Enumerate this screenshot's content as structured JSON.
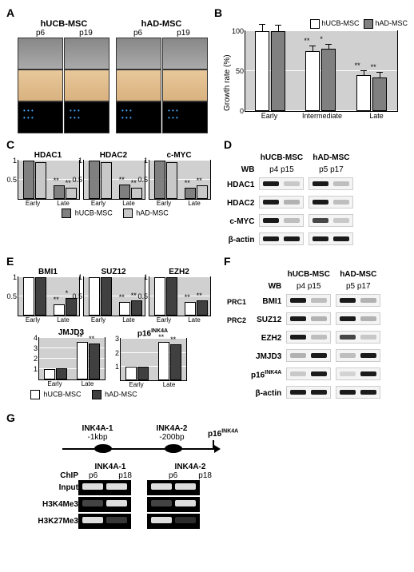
{
  "panelA": {
    "label": "A",
    "columns": [
      "hUCB-MSC",
      "hAD-MSC"
    ],
    "passages": [
      "p6",
      "p19",
      "p6",
      "p19"
    ]
  },
  "panelB": {
    "label": "B",
    "ylabel": "Growth rate (%)",
    "ylim": [
      0,
      100
    ],
    "ytick_step": 50,
    "categories": [
      "Early",
      "Intermediate",
      "Late"
    ],
    "series": [
      {
        "name": "hUCB-MSC",
        "color": "#ffffff",
        "values": [
          100,
          75,
          45
        ],
        "err": [
          8,
          6,
          5
        ],
        "sig": [
          "",
          "**",
          "**"
        ]
      },
      {
        "name": "hAD-MSC",
        "color": "#808080",
        "values": [
          100,
          78,
          42
        ],
        "err": [
          7,
          5,
          6
        ],
        "sig": [
          "",
          "*",
          "**"
        ]
      }
    ],
    "bg": "#d0d0d0"
  },
  "panelC": {
    "label": "C",
    "charts": [
      {
        "title": "HDAC1",
        "ylim": [
          0,
          1
        ],
        "cats": [
          "Early",
          "Late"
        ],
        "series": [
          {
            "c": "#808080",
            "v": [
              1,
              0.35
            ],
            "s": [
              "",
              "**"
            ]
          },
          {
            "c": "#c8c8c8",
            "v": [
              0.95,
              0.3
            ],
            "s": [
              "",
              "**"
            ]
          }
        ]
      },
      {
        "title": "HDAC2",
        "ylim": [
          0,
          1
        ],
        "cats": [
          "Early",
          "Late"
        ],
        "series": [
          {
            "c": "#808080",
            "v": [
              1,
              0.38
            ],
            "s": [
              "",
              "**"
            ]
          },
          {
            "c": "#c8c8c8",
            "v": [
              0.95,
              0.3
            ],
            "s": [
              "",
              "**"
            ]
          }
        ]
      },
      {
        "title": "c-MYC",
        "ylim": [
          0,
          1
        ],
        "cats": [
          "Early",
          "Late"
        ],
        "series": [
          {
            "c": "#808080",
            "v": [
              1,
              0.3
            ],
            "s": [
              "",
              "**"
            ]
          },
          {
            "c": "#c8c8c8",
            "v": [
              0.95,
              0.35
            ],
            "s": [
              "",
              "**"
            ]
          }
        ]
      }
    ],
    "legend": [
      "hUCB-MSC",
      "hAD-MSC"
    ],
    "legend_colors": [
      "#808080",
      "#c8c8c8"
    ]
  },
  "panelD": {
    "label": "D",
    "wb_label": "WB",
    "cols": [
      "hUCB-MSC",
      "hAD-MSC"
    ],
    "passages": [
      [
        "p4",
        "p15"
      ],
      [
        "p5",
        "p17"
      ]
    ],
    "rows": [
      {
        "name": "HDAC1",
        "intensity": [
          [
            1.0,
            0.2
          ],
          [
            1.0,
            0.25
          ]
        ]
      },
      {
        "name": "HDAC2",
        "intensity": [
          [
            1.0,
            0.3
          ],
          [
            1.0,
            0.25
          ]
        ]
      },
      {
        "name": "c-MYC",
        "intensity": [
          [
            1.0,
            0.25
          ],
          [
            0.8,
            0.2
          ]
        ]
      },
      {
        "name": "β-actin",
        "intensity": [
          [
            1.0,
            1.0
          ],
          [
            1.0,
            1.0
          ]
        ]
      }
    ]
  },
  "panelE": {
    "label": "E",
    "charts_top": [
      {
        "title": "BMI1",
        "ylim": [
          0,
          1
        ],
        "cats": [
          "Early",
          "Late"
        ],
        "series": [
          {
            "c": "#ffffff",
            "v": [
              1,
              0.3
            ],
            "s": [
              "",
              "**"
            ]
          },
          {
            "c": "#404040",
            "v": [
              1,
              0.45
            ],
            "s": [
              "",
              "*"
            ]
          }
        ]
      },
      {
        "title": "SUZ12",
        "ylim": [
          0,
          1
        ],
        "cats": [
          "Early",
          "Late"
        ],
        "series": [
          {
            "c": "#ffffff",
            "v": [
              1,
              0.35
            ],
            "s": [
              "",
              "**"
            ]
          },
          {
            "c": "#404040",
            "v": [
              1,
              0.4
            ],
            "s": [
              "",
              "**"
            ]
          }
        ]
      },
      {
        "title": "EZH2",
        "ylim": [
          0,
          1
        ],
        "cats": [
          "Early",
          "Late"
        ],
        "series": [
          {
            "c": "#ffffff",
            "v": [
              1,
              0.35
            ],
            "s": [
              "",
              "**"
            ]
          },
          {
            "c": "#404040",
            "v": [
              1,
              0.4
            ],
            "s": [
              "",
              "**"
            ]
          }
        ]
      }
    ],
    "charts_bot": [
      {
        "title": "JMJD3",
        "ylim": [
          0,
          4
        ],
        "cats": [
          "Early",
          "Late"
        ],
        "series": [
          {
            "c": "#ffffff",
            "v": [
              1,
              3.6
            ],
            "s": [
              "",
              "**"
            ]
          },
          {
            "c": "#404040",
            "v": [
              1.1,
              3.5
            ],
            "s": [
              "",
              "**"
            ]
          }
        ]
      },
      {
        "title": "p16INK4A",
        "sup": "INK4A",
        "ylim": [
          0,
          3
        ],
        "cats": [
          "Early",
          "Late"
        ],
        "series": [
          {
            "c": "#ffffff",
            "v": [
              1,
              2.8
            ],
            "s": [
              "",
              "**"
            ]
          },
          {
            "c": "#404040",
            "v": [
              1,
              2.6
            ],
            "s": [
              "",
              "**"
            ]
          }
        ]
      }
    ],
    "legend": [
      "hUCB-MSC",
      "hAD-MSC"
    ],
    "legend_colors": [
      "#ffffff",
      "#404040"
    ]
  },
  "panelF": {
    "label": "F",
    "wb_label": "WB",
    "cols": [
      "hUCB-MSC",
      "hAD-MSC"
    ],
    "passages": [
      [
        "p4",
        "p15"
      ],
      [
        "p5",
        "p17"
      ]
    ],
    "complex_labels": {
      "PRC1": "BMI1",
      "PRC2_a": "SUZ12",
      "PRC2_b": "EZH2"
    },
    "rows": [
      {
        "name": "BMI1",
        "side": "PRC1",
        "intensity": [
          [
            1.0,
            0.25
          ],
          [
            1.0,
            0.3
          ]
        ]
      },
      {
        "name": "SUZ12",
        "side": "PRC2",
        "intensity": [
          [
            1.0,
            0.3
          ],
          [
            1.0,
            0.3
          ]
        ]
      },
      {
        "name": "EZH2",
        "side": "",
        "intensity": [
          [
            1.0,
            0.25
          ],
          [
            0.8,
            0.2
          ]
        ]
      },
      {
        "name": "JMJD3",
        "side": "",
        "intensity": [
          [
            0.3,
            1.0
          ],
          [
            0.25,
            1.0
          ]
        ]
      },
      {
        "name": "p16INK4A",
        "sup": "INK4A",
        "side": "",
        "intensity": [
          [
            0.2,
            1.0
          ],
          [
            0.15,
            1.0
          ]
        ]
      },
      {
        "name": "β-actin",
        "side": "",
        "intensity": [
          [
            1.0,
            1.0
          ],
          [
            1.0,
            1.0
          ]
        ]
      }
    ]
  },
  "panelG": {
    "label": "G",
    "regions": [
      {
        "name": "INK4A-1",
        "pos": "-1kbp"
      },
      {
        "name": "INK4A-2",
        "pos": "-200bp"
      }
    ],
    "gene": "p16INK4A",
    "chip_label": "ChIP",
    "passages": [
      "p6",
      "p18"
    ],
    "rows": [
      {
        "name": "Input",
        "intensity": [
          [
            1.0,
            1.0
          ],
          [
            1.0,
            1.0
          ]
        ]
      },
      {
        "name": "H3K4Me3",
        "intensity": [
          [
            0.3,
            1.0
          ],
          [
            0.3,
            1.0
          ]
        ]
      },
      {
        "name": "H3K27Me3",
        "intensity": [
          [
            1.0,
            0.25
          ],
          [
            1.0,
            0.2
          ]
        ]
      }
    ]
  }
}
